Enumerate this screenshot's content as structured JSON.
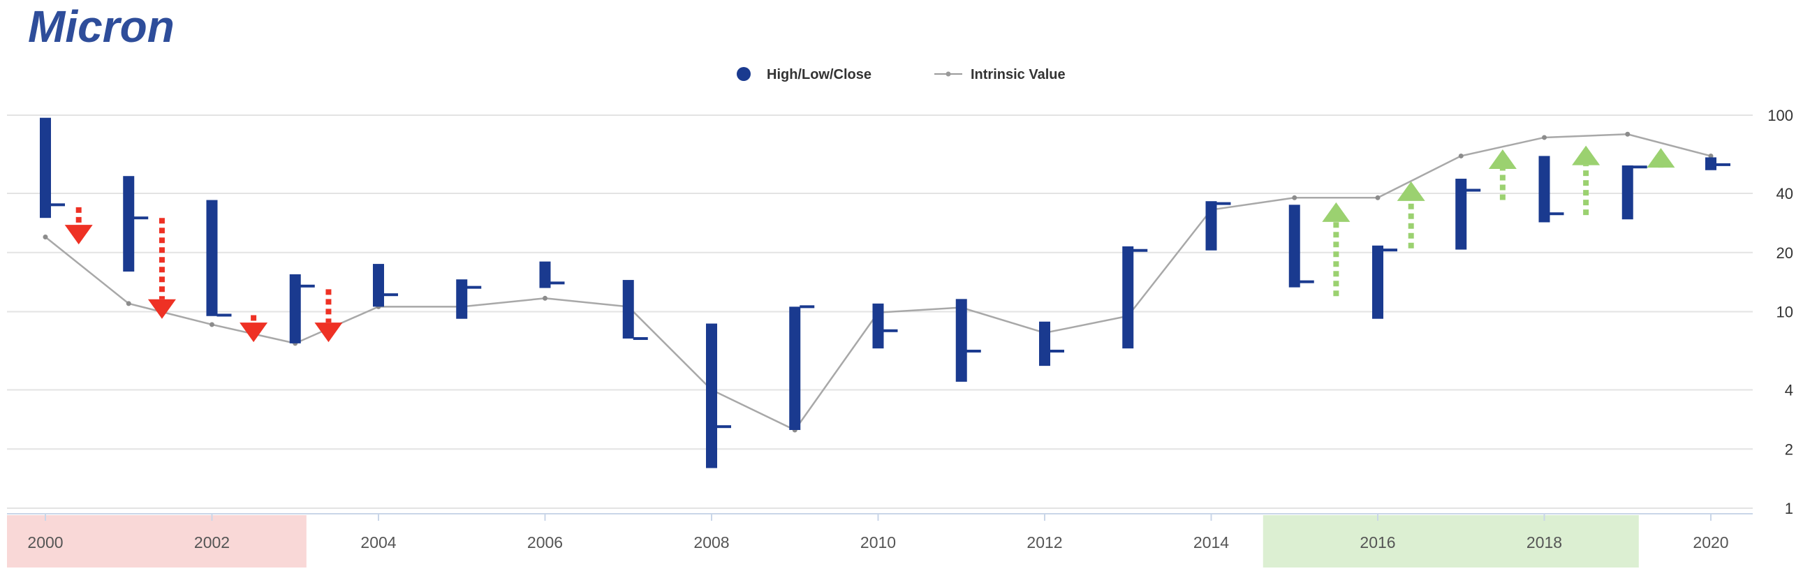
{
  "brand": {
    "name": "Micron",
    "color": "#2e4d9a"
  },
  "legend": {
    "position": "top-center",
    "items": [
      {
        "label": "High/Low/Close",
        "color": "#1a3a8f",
        "symbol": "circle"
      },
      {
        "label": "Intrinsic Value",
        "color": "#9a9a9a",
        "symbol": "line-with-dot"
      }
    ]
  },
  "colors": {
    "bars": "#1a3a8f",
    "intrinsic_line": "#a8a8a8",
    "grid": "#e3e3e3",
    "overvalued_band": "#f9d8d7",
    "undervalued_band": "#dcefd2",
    "down_arrow": "#ee3124",
    "up_arrow": "#9bd170"
  },
  "chart_data": {
    "type": "hlc",
    "x_ticks": [
      2000,
      2002,
      2004,
      2006,
      2008,
      2010,
      2012,
      2014,
      2016,
      2018,
      2020
    ],
    "xlim": [
      2000,
      2020
    ],
    "y_scale": "log",
    "y_ticks": [
      1,
      2,
      4,
      10,
      20,
      40,
      100
    ],
    "ylim": [
      1,
      100
    ],
    "grid": true,
    "series": [
      {
        "name": "High/Low/Close",
        "points": [
          {
            "year": 2000,
            "high": 97,
            "low": 30,
            "close": 35
          },
          {
            "year": 2001,
            "high": 49,
            "low": 16,
            "close": 30
          },
          {
            "year": 2002,
            "high": 37,
            "low": 9.5,
            "close": 9.6
          },
          {
            "year": 2003,
            "high": 15.5,
            "low": 6.9,
            "close": 13.5
          },
          {
            "year": 2004,
            "high": 17.5,
            "low": 10.6,
            "close": 12.2
          },
          {
            "year": 2005,
            "high": 14.6,
            "low": 9.2,
            "close": 13.3
          },
          {
            "year": 2006,
            "high": 18,
            "low": 13.2,
            "close": 14
          },
          {
            "year": 2007,
            "high": 14.5,
            "low": 7.3,
            "close": 7.3
          },
          {
            "year": 2008,
            "high": 8.7,
            "low": 1.6,
            "close": 2.6
          },
          {
            "year": 2009,
            "high": 10.6,
            "low": 2.5,
            "close": 10.6
          },
          {
            "year": 2010,
            "high": 11,
            "low": 6.5,
            "close": 8
          },
          {
            "year": 2011,
            "high": 11.6,
            "low": 4.4,
            "close": 6.3
          },
          {
            "year": 2012,
            "high": 8.9,
            "low": 5.3,
            "close": 6.3
          },
          {
            "year": 2013,
            "high": 21.5,
            "low": 6.5,
            "close": 20.5
          },
          {
            "year": 2014,
            "high": 36.5,
            "low": 20.5,
            "close": 35.5
          },
          {
            "year": 2015,
            "high": 35,
            "low": 13.3,
            "close": 14.2
          },
          {
            "year": 2016,
            "high": 21.7,
            "low": 9.2,
            "close": 20.6
          },
          {
            "year": 2017,
            "high": 47.5,
            "low": 20.7,
            "close": 41.5
          },
          {
            "year": 2018,
            "high": 62,
            "low": 28.5,
            "close": 31.5
          },
          {
            "year": 2019,
            "high": 55.5,
            "low": 29.5,
            "close": 54.5
          },
          {
            "year": 2020,
            "high": 61,
            "low": 52.5,
            "close": 56
          }
        ]
      },
      {
        "name": "Intrinsic Value",
        "x": [
          2000,
          2001,
          2002,
          2003,
          2004,
          2005,
          2006,
          2007,
          2008,
          2009,
          2010,
          2011,
          2012,
          2013,
          2014,
          2015,
          2016,
          2017,
          2018,
          2019,
          2020
        ],
        "values": [
          24,
          11,
          8.6,
          6.9,
          10.6,
          10.6,
          11.7,
          10.6,
          4,
          2.5,
          9.9,
          10.5,
          7.8,
          9.5,
          33,
          38,
          38,
          62,
          77,
          80,
          62
        ]
      }
    ],
    "shaded_ranges": [
      {
        "from": 2000,
        "to": 2002.9,
        "meaning": "overvalued",
        "color": "#f9d8d7"
      },
      {
        "from": 2015,
        "to": 2018.9,
        "meaning": "undervalued",
        "color": "#dcefd2"
      }
    ],
    "annotations": {
      "down_arrows": [
        {
          "year": 2000.4,
          "from": 34,
          "to": 22
        },
        {
          "year": 2001.4,
          "from": 30,
          "to": 9.2
        },
        {
          "year": 2002.5,
          "from": 9.6,
          "to": 7
        },
        {
          "year": 2003.4,
          "from": 13,
          "to": 7
        }
      ],
      "up_arrows": [
        {
          "year": 2015.5,
          "from": 12,
          "to": 36
        },
        {
          "year": 2016.4,
          "from": 21,
          "to": 46
        },
        {
          "year": 2017.5,
          "from": 37,
          "to": 67
        },
        {
          "year": 2018.5,
          "from": 31,
          "to": 70
        },
        {
          "year": 2019.4,
          "from": 55,
          "to": 68
        }
      ]
    }
  }
}
